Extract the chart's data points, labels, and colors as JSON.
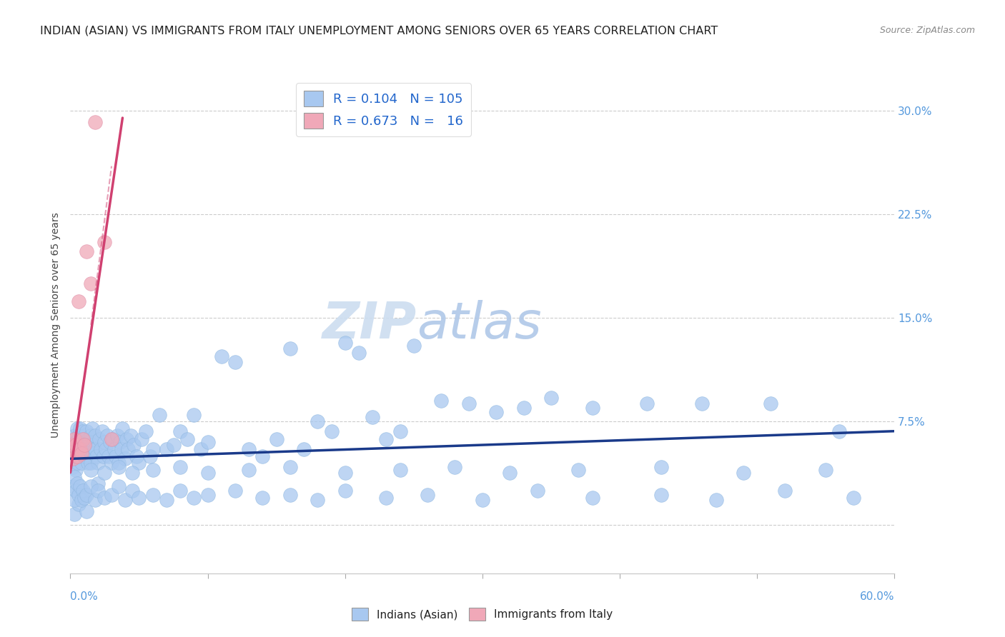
{
  "title": "INDIAN (ASIAN) VS IMMIGRANTS FROM ITALY UNEMPLOYMENT AMONG SENIORS OVER 65 YEARS CORRELATION CHART",
  "source": "Source: ZipAtlas.com",
  "ylabel": "Unemployment Among Seniors over 65 years",
  "xlim": [
    0.0,
    0.6
  ],
  "ylim": [
    -0.035,
    0.325
  ],
  "yticks": [
    0.0,
    0.075,
    0.15,
    0.225,
    0.3
  ],
  "ytick_labels": [
    "",
    "7.5%",
    "15.0%",
    "22.5%",
    "30.0%"
  ],
  "blue_color": "#a8c8f0",
  "pink_color": "#f0a8b8",
  "blue_line_color": "#1a3a8a",
  "pink_line_color": "#d04070",
  "watermark_zip": "ZIP",
  "watermark_atlas": "atlas",
  "legend_r_blue": "0.104",
  "legend_n_blue": "105",
  "legend_r_pink": "0.673",
  "legend_n_pink": "16",
  "blue_trend_x": [
    0.0,
    0.6
  ],
  "blue_trend_y": [
    0.048,
    0.068
  ],
  "pink_trend_x": [
    0.0,
    0.038
  ],
  "pink_trend_y": [
    0.038,
    0.295
  ],
  "blue_x": [
    0.001,
    0.002,
    0.002,
    0.003,
    0.003,
    0.004,
    0.004,
    0.005,
    0.005,
    0.005,
    0.006,
    0.006,
    0.007,
    0.007,
    0.007,
    0.008,
    0.008,
    0.009,
    0.009,
    0.01,
    0.01,
    0.011,
    0.011,
    0.012,
    0.012,
    0.013,
    0.013,
    0.014,
    0.014,
    0.015,
    0.015,
    0.016,
    0.016,
    0.017,
    0.018,
    0.018,
    0.019,
    0.02,
    0.021,
    0.022,
    0.023,
    0.024,
    0.025,
    0.026,
    0.027,
    0.028,
    0.029,
    0.03,
    0.031,
    0.032,
    0.033,
    0.034,
    0.035,
    0.036,
    0.037,
    0.038,
    0.04,
    0.041,
    0.042,
    0.044,
    0.046,
    0.048,
    0.05,
    0.052,
    0.055,
    0.058,
    0.06,
    0.065,
    0.07,
    0.075,
    0.08,
    0.085,
    0.09,
    0.095,
    0.1,
    0.11,
    0.12,
    0.13,
    0.14,
    0.15,
    0.16,
    0.17,
    0.18,
    0.19,
    0.2,
    0.21,
    0.22,
    0.23,
    0.24,
    0.25,
    0.27,
    0.29,
    0.31,
    0.33,
    0.35,
    0.38,
    0.42,
    0.46,
    0.51,
    0.56,
    0.003,
    0.006,
    0.008,
    0.012,
    0.02
  ],
  "blue_y": [
    0.05,
    0.058,
    0.042,
    0.055,
    0.065,
    0.06,
    0.04,
    0.055,
    0.045,
    0.07,
    0.055,
    0.065,
    0.05,
    0.06,
    0.07,
    0.045,
    0.062,
    0.055,
    0.068,
    0.05,
    0.065,
    0.055,
    0.06,
    0.05,
    0.068,
    0.055,
    0.045,
    0.06,
    0.055,
    0.065,
    0.045,
    0.058,
    0.07,
    0.052,
    0.055,
    0.065,
    0.05,
    0.045,
    0.062,
    0.055,
    0.068,
    0.05,
    0.06,
    0.055,
    0.065,
    0.05,
    0.06,
    0.045,
    0.062,
    0.055,
    0.05,
    0.065,
    0.045,
    0.06,
    0.055,
    0.07,
    0.048,
    0.062,
    0.055,
    0.065,
    0.058,
    0.05,
    0.045,
    0.062,
    0.068,
    0.05,
    0.055,
    0.08,
    0.055,
    0.058,
    0.068,
    0.062,
    0.08,
    0.055,
    0.06,
    0.122,
    0.118,
    0.055,
    0.05,
    0.062,
    0.128,
    0.055,
    0.075,
    0.068,
    0.132,
    0.125,
    0.078,
    0.062,
    0.068,
    0.13,
    0.09,
    0.088,
    0.082,
    0.085,
    0.092,
    0.085,
    0.088,
    0.088,
    0.088,
    0.068,
    0.008,
    0.015,
    0.02,
    0.01,
    0.03
  ],
  "blue_x2": [
    0.002,
    0.003,
    0.003,
    0.004,
    0.005,
    0.006,
    0.007,
    0.008,
    0.009,
    0.01,
    0.012,
    0.015,
    0.018,
    0.02,
    0.025,
    0.03,
    0.035,
    0.04,
    0.045,
    0.05,
    0.06,
    0.07,
    0.08,
    0.09,
    0.1,
    0.12,
    0.14,
    0.16,
    0.18,
    0.2,
    0.23,
    0.26,
    0.3,
    0.34,
    0.38,
    0.43,
    0.47,
    0.52,
    0.57,
    0.015,
    0.025,
    0.035,
    0.045,
    0.06,
    0.08,
    0.1,
    0.13,
    0.16,
    0.2,
    0.24,
    0.28,
    0.32,
    0.37,
    0.43,
    0.49,
    0.55
  ],
  "blue_y2": [
    0.028,
    0.018,
    0.035,
    0.025,
    0.03,
    0.022,
    0.028,
    0.018,
    0.025,
    0.02,
    0.022,
    0.028,
    0.018,
    0.025,
    0.02,
    0.022,
    0.028,
    0.018,
    0.025,
    0.02,
    0.022,
    0.018,
    0.025,
    0.02,
    0.022,
    0.025,
    0.02,
    0.022,
    0.018,
    0.025,
    0.02,
    0.022,
    0.018,
    0.025,
    0.02,
    0.022,
    0.018,
    0.025,
    0.02,
    0.04,
    0.038,
    0.042,
    0.038,
    0.04,
    0.042,
    0.038,
    0.04,
    0.042,
    0.038,
    0.04,
    0.042,
    0.038,
    0.04,
    0.042,
    0.038,
    0.04
  ],
  "pink_x": [
    0.001,
    0.002,
    0.002,
    0.003,
    0.004,
    0.005,
    0.006,
    0.007,
    0.008,
    0.009,
    0.01,
    0.012,
    0.015,
    0.018,
    0.025,
    0.03
  ],
  "pink_y": [
    0.052,
    0.058,
    0.048,
    0.062,
    0.058,
    0.05,
    0.162,
    0.055,
    0.052,
    0.062,
    0.058,
    0.198,
    0.175,
    0.292,
    0.205,
    0.062
  ],
  "background_color": "#ffffff",
  "title_fontsize": 11.5,
  "source_fontsize": 9,
  "axis_label_fontsize": 10,
  "tick_fontsize": 11,
  "legend_fontsize": 13
}
